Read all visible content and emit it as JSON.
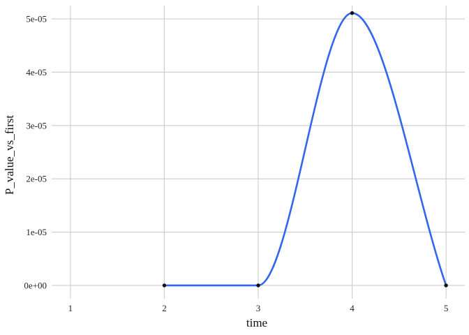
{
  "chart_data": {
    "type": "line",
    "title": "",
    "xlabel": "time",
    "ylabel": "P_value_vs_first",
    "xlim": [
      0.8,
      5.2
    ],
    "ylim": [
      -2.5e-06,
      5.25e-05
    ],
    "x_ticks": [
      1,
      2,
      3,
      4,
      5
    ],
    "x_tick_labels": [
      "1",
      "2",
      "3",
      "4",
      "5"
    ],
    "y_ticks": [
      0,
      1e-05,
      2e-05,
      3e-05,
      4e-05,
      5e-05
    ],
    "y_tick_labels": [
      "0e+00",
      "1e-05",
      "2e-05",
      "3e-05",
      "4e-05",
      "5e-05"
    ],
    "grid": true,
    "legend": "none",
    "series": [
      {
        "points": [
          {
            "x": 2,
            "y": 0
          },
          {
            "x": 3,
            "y": 0
          },
          {
            "x": 4,
            "y": 5.11e-05
          },
          {
            "x": 5,
            "y": 0
          }
        ]
      }
    ],
    "colors": {
      "line": "#3366ee",
      "point": "#111111",
      "grid": "#cccccc",
      "background": "#ffffff"
    }
  }
}
